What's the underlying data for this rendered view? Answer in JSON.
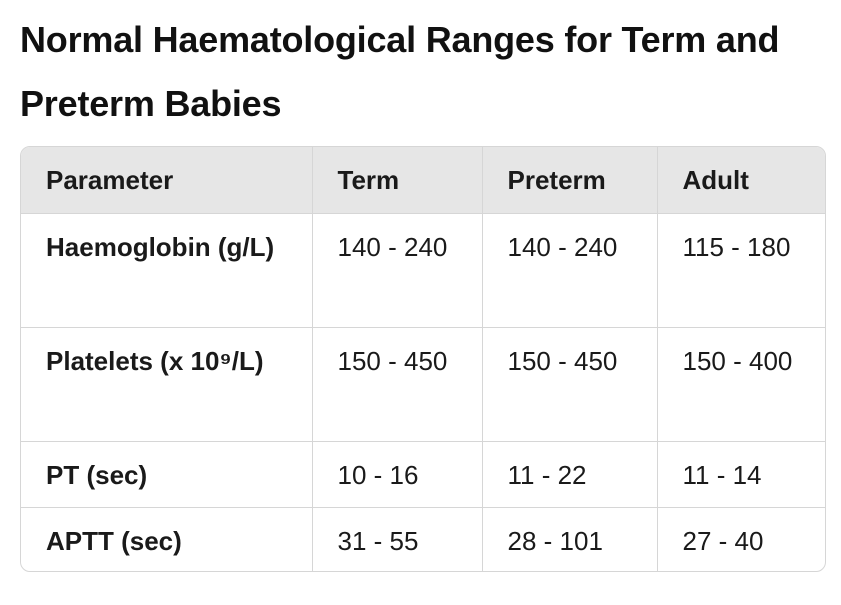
{
  "title": "Normal Haematological Ranges for Term and Preterm Babies",
  "table": {
    "headers": [
      "Parameter",
      "Term",
      "Preterm",
      "Adult"
    ],
    "rows": [
      [
        "Haemoglobin (g/L)",
        "140 - 240",
        "140 - 240",
        "115 - 180"
      ],
      [
        "Platelets (x 10⁹/L)",
        "150 - 450",
        "150 - 450",
        "150 - 400"
      ],
      [
        "PT (sec)",
        "10 - 16",
        "11 - 22",
        "11 - 14"
      ],
      [
        "APTT (sec)",
        "31 - 55",
        "28 - 101",
        "27 - 40"
      ]
    ]
  }
}
